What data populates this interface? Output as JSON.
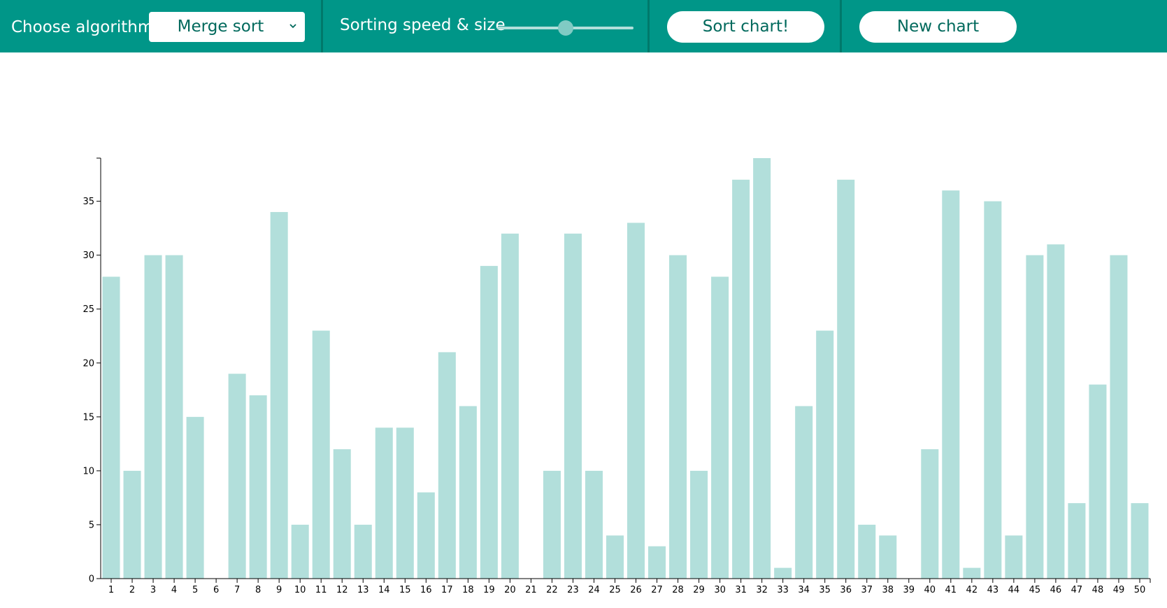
{
  "toolbar": {
    "choose_label": "Choose algorithm",
    "algorithm_selected": "Merge sort",
    "speed_label": "Sorting speed & size",
    "speed_value": 0.5,
    "sort_button": "Sort chart!",
    "new_button": "New chart"
  },
  "colors": {
    "toolbar_bg": "#009688",
    "bar": "#b2dfdb",
    "button_text": "#00695c"
  },
  "icons": {
    "select_chevron": "chevron-down-icon"
  },
  "chart_data": {
    "type": "bar",
    "categories": [
      "1",
      "2",
      "3",
      "4",
      "5",
      "6",
      "7",
      "8",
      "9",
      "10",
      "11",
      "12",
      "13",
      "14",
      "15",
      "16",
      "17",
      "18",
      "19",
      "20",
      "21",
      "22",
      "23",
      "24",
      "25",
      "26",
      "27",
      "28",
      "29",
      "30",
      "31",
      "32",
      "33",
      "34",
      "35",
      "36",
      "37",
      "38",
      "39",
      "40",
      "41",
      "42",
      "43",
      "44",
      "45",
      "46",
      "47",
      "48",
      "49",
      "50"
    ],
    "values": [
      28,
      10,
      30,
      30,
      15,
      0,
      19,
      17,
      34,
      5,
      23,
      12,
      5,
      14,
      14,
      8,
      21,
      16,
      29,
      32,
      0,
      10,
      32,
      10,
      4,
      33,
      3,
      30,
      10,
      28,
      37,
      39,
      1,
      16,
      23,
      37,
      5,
      4,
      0,
      12,
      36,
      1,
      35,
      4,
      30,
      31,
      7,
      18,
      30,
      7
    ],
    "yticks": [
      "0",
      "5",
      "10",
      "15",
      "20",
      "25",
      "30",
      "35"
    ],
    "ylim": [
      0,
      39
    ],
    "grid": false,
    "title": "",
    "xlabel": "",
    "ylabel": ""
  }
}
